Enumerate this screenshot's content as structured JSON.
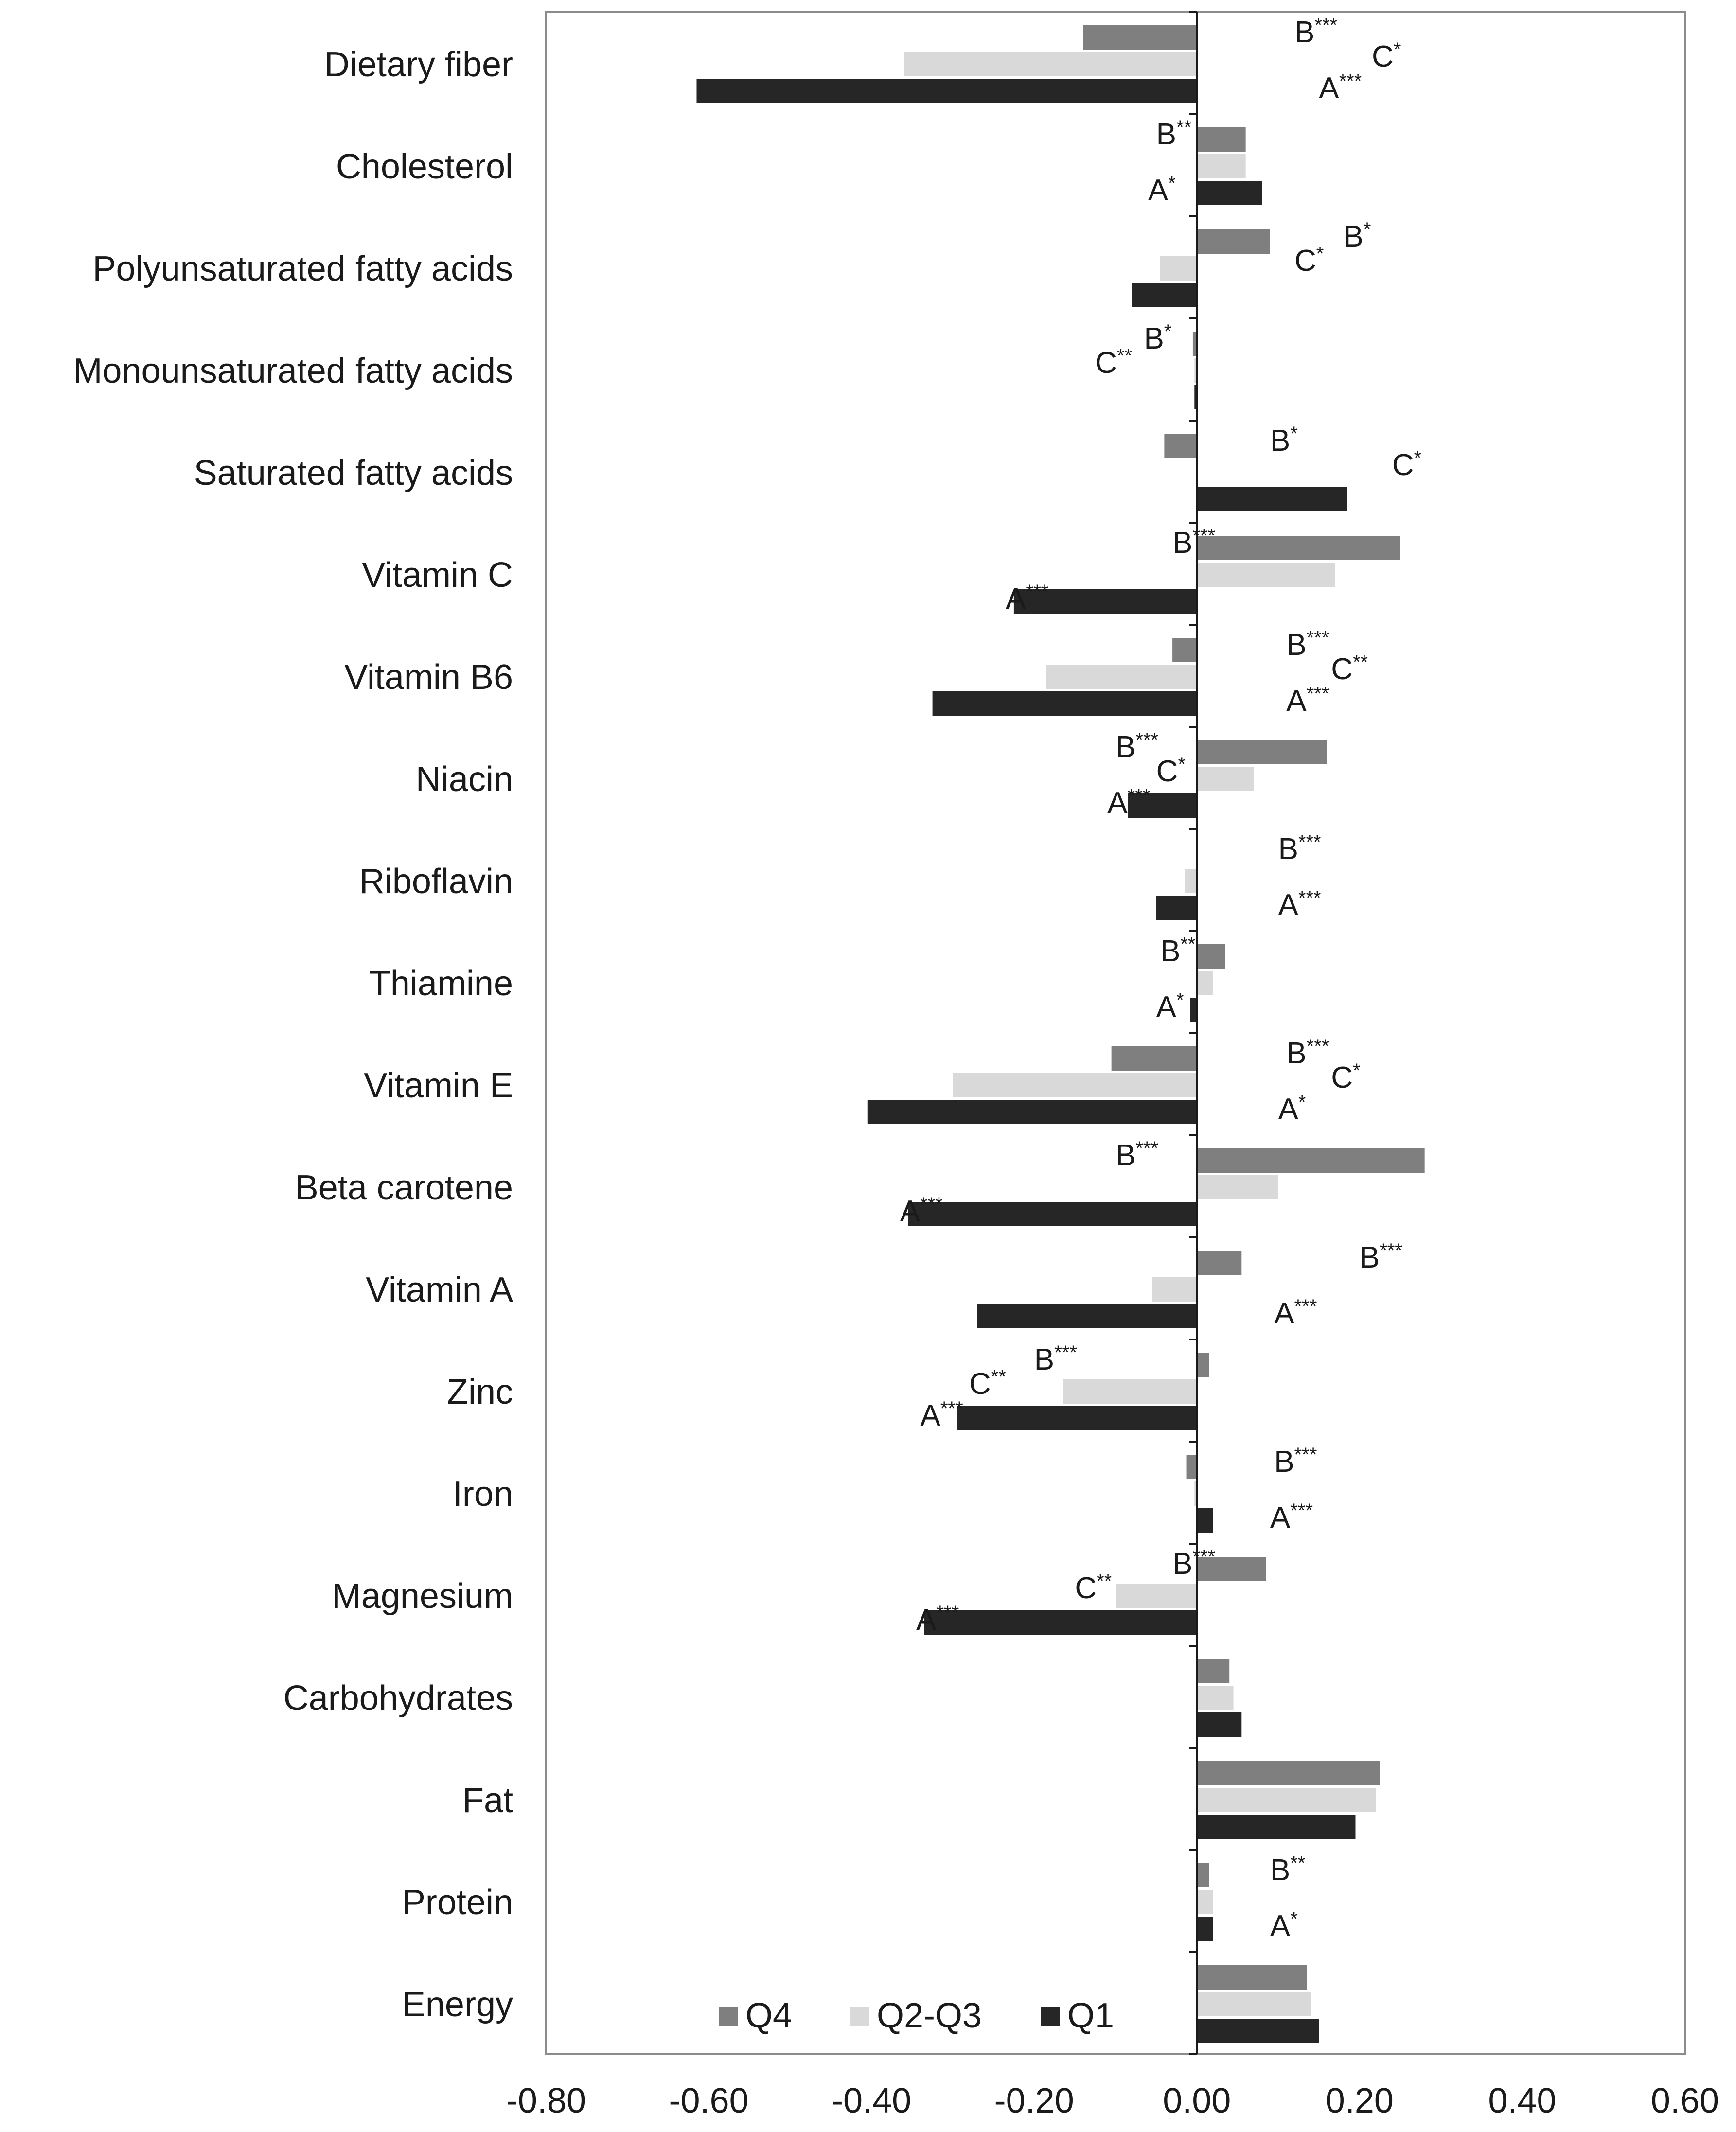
{
  "chart_data": {
    "type": "bar",
    "orientation": "horizontal",
    "title": "",
    "xlabel": "",
    "ylabel": "",
    "xlim": [
      -0.8,
      0.6
    ],
    "x_ticks": [
      "-0.80",
      "-0.60",
      "-0.40",
      "-0.20",
      "0.00",
      "0.20",
      "0.40",
      "0.60"
    ],
    "grid": false,
    "legend_position": "bottom-left",
    "categories": [
      "Dietary fiber",
      "Cholesterol",
      "Polyunsaturated fatty acids",
      "Monounsaturated fatty acids",
      "Saturated fatty acids",
      "Vitamin C",
      "Vitamin B6",
      "Niacin",
      "Riboflavin",
      "Thiamine",
      "Vitamin E",
      "Beta carotene",
      "Vitamin A",
      "Zinc",
      "Iron",
      "Magnesium",
      "Carbohydrates",
      "Fat",
      "Protein",
      "Energy"
    ],
    "series": [
      {
        "name": "Q4",
        "color": "#7f7f7f",
        "values": [
          -0.14,
          0.06,
          0.09,
          -0.005,
          -0.04,
          0.25,
          -0.03,
          0.16,
          0.0,
          0.035,
          -0.105,
          0.28,
          0.055,
          0.015,
          -0.013,
          0.085,
          0.04,
          0.225,
          0.015,
          0.135
        ]
      },
      {
        "name": "Q2-Q3",
        "color": "#d9d9d9",
        "values": [
          -0.36,
          0.06,
          -0.045,
          -0.003,
          0.0,
          0.17,
          -0.185,
          0.07,
          -0.015,
          0.02,
          -0.3,
          0.1,
          -0.055,
          -0.165,
          -0.003,
          -0.1,
          0.045,
          0.22,
          0.02,
          0.14
        ]
      },
      {
        "name": "Q1",
        "color": "#262626",
        "values": [
          -0.615,
          0.08,
          -0.08,
          -0.003,
          0.185,
          -0.225,
          -0.325,
          -0.085,
          -0.05,
          -0.008,
          -0.405,
          -0.355,
          -0.27,
          -0.295,
          0.02,
          -0.335,
          0.055,
          0.195,
          0.02,
          0.15
        ]
      }
    ],
    "annotations": [
      {
        "category": "Dietary fiber",
        "label": "B",
        "stars": "***",
        "at": 0.12
      },
      {
        "category": "Dietary fiber",
        "label": "C",
        "stars": "*",
        "at": 0.215
      },
      {
        "category": "Dietary fiber",
        "label": "A",
        "stars": "***",
        "at": 0.15
      },
      {
        "category": "Cholesterol",
        "label": "B",
        "stars": "**",
        "at": -0.05
      },
      {
        "category": "Cholesterol",
        "label": "A",
        "stars": "*",
        "at": -0.06
      },
      {
        "category": "Polyunsaturated fatty acids",
        "label": "B",
        "stars": "*",
        "at": 0.18
      },
      {
        "category": "Polyunsaturated fatty acids",
        "label": "C",
        "stars": "*",
        "at": 0.12
      },
      {
        "category": "Monounsaturated fatty acids",
        "label": "B",
        "stars": "*",
        "at": -0.065
      },
      {
        "category": "Monounsaturated fatty acids",
        "label": "C",
        "stars": "**",
        "at": -0.125
      },
      {
        "category": "Saturated fatty acids",
        "label": "B",
        "stars": "*",
        "at": 0.09
      },
      {
        "category": "Saturated fatty acids",
        "label": "C",
        "stars": "*",
        "at": 0.24
      },
      {
        "category": "Vitamin C",
        "label": "B",
        "stars": "***",
        "at": -0.03
      },
      {
        "category": "Vitamin C",
        "label": "A",
        "stars": "***",
        "at": -0.235
      },
      {
        "category": "Vitamin B6",
        "label": "B",
        "stars": "***",
        "at": 0.11
      },
      {
        "category": "Vitamin B6",
        "label": "C",
        "stars": "**",
        "at": 0.165
      },
      {
        "category": "Vitamin B6",
        "label": "A",
        "stars": "***",
        "at": 0.11
      },
      {
        "category": "Niacin",
        "label": "B",
        "stars": "***",
        "at": -0.1
      },
      {
        "category": "Niacin",
        "label": "C",
        "stars": "*",
        "at": -0.05
      },
      {
        "category": "Niacin",
        "label": "A",
        "stars": "***",
        "at": -0.11
      },
      {
        "category": "Riboflavin",
        "label": "B",
        "stars": "***",
        "at": 0.1
      },
      {
        "category": "Riboflavin",
        "label": "A",
        "stars": "***",
        "at": 0.1
      },
      {
        "category": "Thiamine",
        "label": "B",
        "stars": "**",
        "at": -0.045
      },
      {
        "category": "Thiamine",
        "label": "A",
        "stars": "*",
        "at": -0.05
      },
      {
        "category": "Vitamin E",
        "label": "B",
        "stars": "***",
        "at": 0.11
      },
      {
        "category": "Vitamin E",
        "label": "C",
        "stars": "*",
        "at": 0.165
      },
      {
        "category": "Vitamin E",
        "label": "A",
        "stars": "*",
        "at": 0.1
      },
      {
        "category": "Beta carotene",
        "label": "B",
        "stars": "***",
        "at": -0.1
      },
      {
        "category": "Beta carotene",
        "label": "A",
        "stars": "***",
        "at": -0.365
      },
      {
        "category": "Vitamin A",
        "label": "B",
        "stars": "***",
        "at": 0.2
      },
      {
        "category": "Vitamin A",
        "label": "A",
        "stars": "***",
        "at": 0.095
      },
      {
        "category": "Zinc",
        "label": "B",
        "stars": "***",
        "at": -0.2
      },
      {
        "category": "Zinc",
        "label": "C",
        "stars": "**",
        "at": -0.28
      },
      {
        "category": "Zinc",
        "label": "A",
        "stars": "***",
        "at": -0.34
      },
      {
        "category": "Iron",
        "label": "B",
        "stars": "***",
        "at": 0.095
      },
      {
        "category": "Iron",
        "label": "A",
        "stars": "***",
        "at": 0.09
      },
      {
        "category": "Magnesium",
        "label": "B",
        "stars": "***",
        "at": -0.03
      },
      {
        "category": "Magnesium",
        "label": "C",
        "stars": "**",
        "at": -0.15
      },
      {
        "category": "Magnesium",
        "label": "A",
        "stars": "***",
        "at": -0.345
      },
      {
        "category": "Protein",
        "label": "B",
        "stars": "**",
        "at": 0.09
      },
      {
        "category": "Protein",
        "label": "A",
        "stars": "*",
        "at": 0.09
      }
    ]
  }
}
